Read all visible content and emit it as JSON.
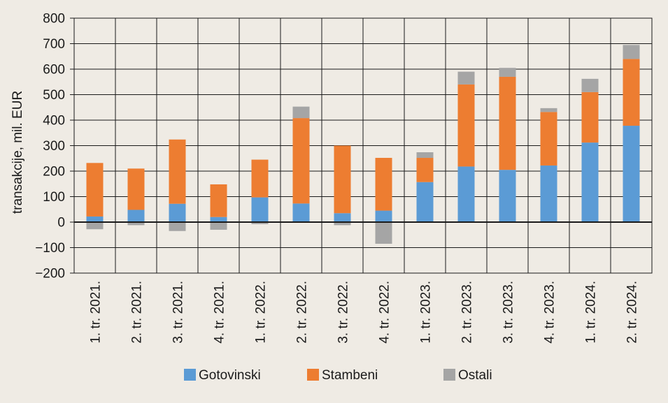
{
  "chart_data": {
    "type": "bar",
    "stacked": true,
    "ylabel": "transakcije, mil. EUR",
    "xlabel": "",
    "ylim": [
      -200,
      800
    ],
    "yticks": [
      800,
      700,
      600,
      500,
      400,
      300,
      200,
      100,
      0,
      -100,
      -200
    ],
    "ytick_labels": [
      "800",
      "700",
      "600",
      "500",
      "400",
      "300",
      "200",
      "100",
      "0",
      "−100",
      "−200"
    ],
    "grid": true,
    "legend_position": "bottom",
    "categories": [
      "1. tr. 2021.",
      "2. tr. 2021.",
      "3. tr. 2021.",
      "4. tr. 2021.",
      "1. tr. 2022.",
      "2. tr. 2022.",
      "3. tr. 2022.",
      "4. tr. 2022.",
      "1. tr. 2023.",
      "2. tr. 2023.",
      "3. tr. 2023.",
      "4. tr. 2023.",
      "1. tr. 2024.",
      "2. tr. 2024."
    ],
    "series": [
      {
        "name": "Gotovinski",
        "color": "#5b9bd5",
        "values": [
          22,
          48,
          72,
          20,
          97,
          73,
          35,
          45,
          157,
          218,
          205,
          222,
          312,
          378
        ]
      },
      {
        "name": "Stambeni",
        "color": "#ed7d31",
        "values": [
          210,
          162,
          252,
          128,
          148,
          335,
          265,
          207,
          95,
          322,
          365,
          210,
          198,
          262
        ]
      },
      {
        "name": "Ostali",
        "color": "#a5a5a5",
        "values": [
          -28,
          -12,
          -35,
          -30,
          -8,
          45,
          -12,
          -85,
          22,
          50,
          35,
          15,
          52,
          55
        ]
      }
    ]
  }
}
